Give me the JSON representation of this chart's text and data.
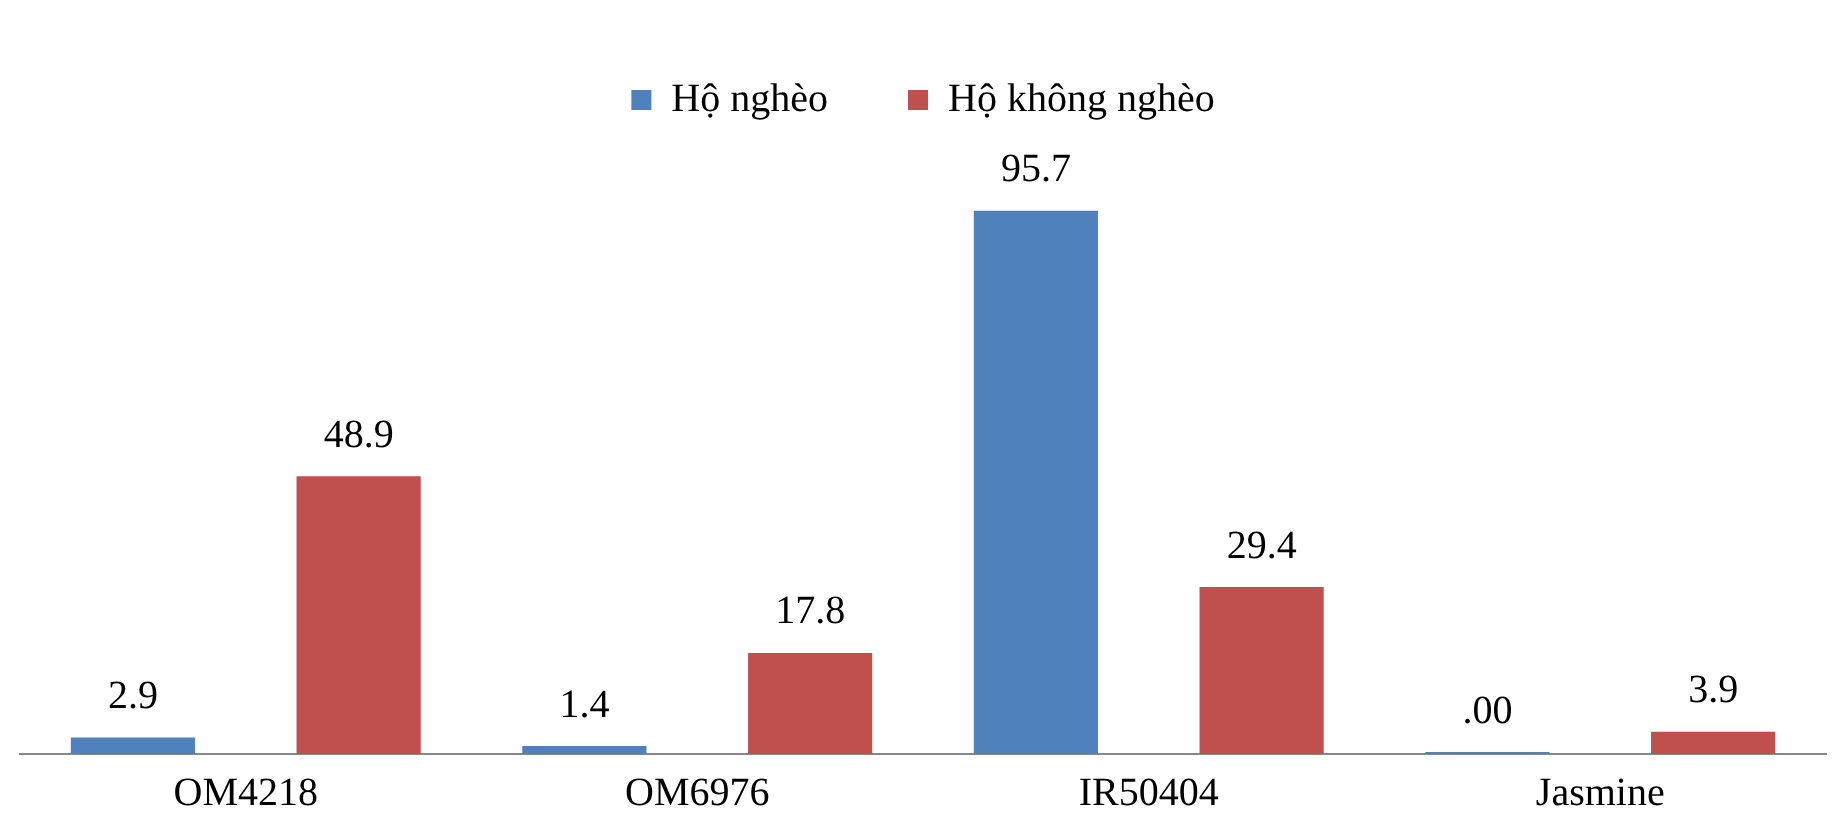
{
  "chart_data": {
    "type": "bar",
    "categories": [
      "OM4218",
      "OM6976",
      "IR50404",
      "Jasmine"
    ],
    "series": [
      {
        "name": "Hộ nghèo",
        "color": "#4f81bd",
        "values": [
          2.9,
          1.4,
          95.7,
          0
        ],
        "value_labels": [
          "2.9",
          "1.4",
          "95.7",
          ".00"
        ]
      },
      {
        "name": "Hộ không nghèo",
        "color": "#c0504d",
        "values": [
          48.9,
          17.8,
          29.4,
          3.9
        ],
        "value_labels": [
          "48.9",
          "17.8",
          "29.4",
          "3.9"
        ]
      }
    ],
    "legend": "top",
    "grid": false
  }
}
